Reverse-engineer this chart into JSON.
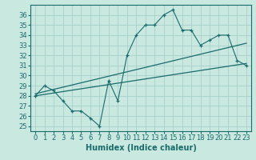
{
  "xlabel": "Humidex (Indice chaleur)",
  "xlim": [
    -0.5,
    23.5
  ],
  "ylim": [
    24.5,
    37.0
  ],
  "xticks": [
    0,
    1,
    2,
    3,
    4,
    5,
    6,
    7,
    8,
    9,
    10,
    11,
    12,
    13,
    14,
    15,
    16,
    17,
    18,
    19,
    20,
    21,
    22,
    23
  ],
  "yticks": [
    25,
    26,
    27,
    28,
    29,
    30,
    31,
    32,
    33,
    34,
    35,
    36
  ],
  "bg_color": "#c8e8e0",
  "line_color": "#1a6b6b",
  "grid_color": "#a8d0cc",
  "line1_x": [
    0,
    1,
    2,
    3,
    4,
    5,
    6,
    7,
    8,
    9,
    10,
    11,
    12,
    13,
    14,
    15,
    16,
    17,
    18,
    19,
    20,
    21,
    22,
    23
  ],
  "line1_y": [
    28.0,
    29.0,
    28.5,
    27.5,
    26.5,
    26.5,
    25.8,
    25.0,
    29.5,
    27.5,
    32.0,
    34.0,
    35.0,
    35.0,
    36.0,
    36.5,
    34.5,
    34.5,
    33.0,
    33.5,
    34.0,
    34.0,
    31.5,
    31.0
  ],
  "line2_x": [
    0,
    23
  ],
  "line2_y": [
    28.2,
    33.2
  ],
  "line3_x": [
    0,
    23
  ],
  "line3_y": [
    28.0,
    31.2
  ],
  "fontsize_label": 7,
  "fontsize_tick": 6
}
